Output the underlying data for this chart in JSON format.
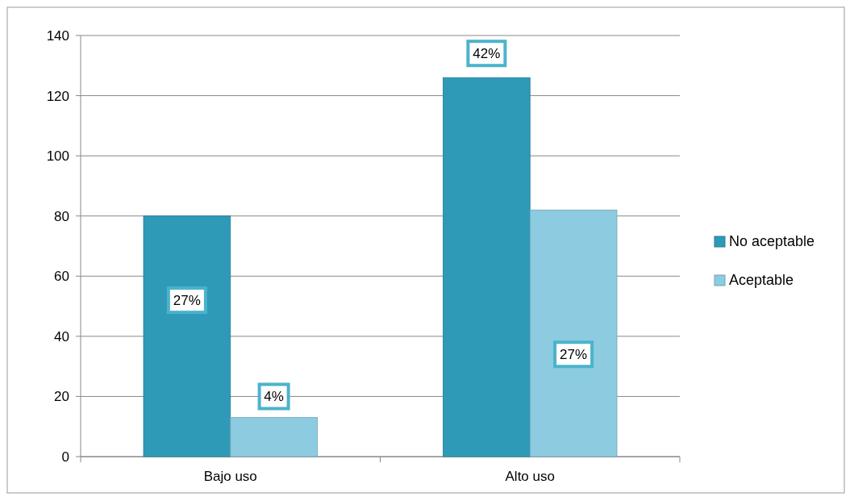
{
  "chart_data": {
    "type": "bar",
    "categories": [
      "Bajo uso",
      "Alto uso"
    ],
    "series": [
      {
        "name": "No aceptable",
        "color": "#2f9ab8",
        "values": [
          80,
          126
        ]
      },
      {
        "name": "Aceptable",
        "color": "#8ccbe0",
        "values": [
          13,
          82
        ]
      }
    ],
    "annotations": [
      {
        "text": "27%",
        "x": "Bajo uso",
        "y": 52
      },
      {
        "text": "4%",
        "x": "Bajo uso",
        "y": 20
      },
      {
        "text": "42%",
        "x": "Alto uso",
        "y": 126
      },
      {
        "text": "27%",
        "x": "Alto uso",
        "y": 34
      }
    ],
    "ylim": [
      0,
      140
    ],
    "yticks": [
      0,
      20,
      40,
      60,
      80,
      100,
      120,
      140
    ],
    "grid": "y",
    "legend": "right"
  }
}
